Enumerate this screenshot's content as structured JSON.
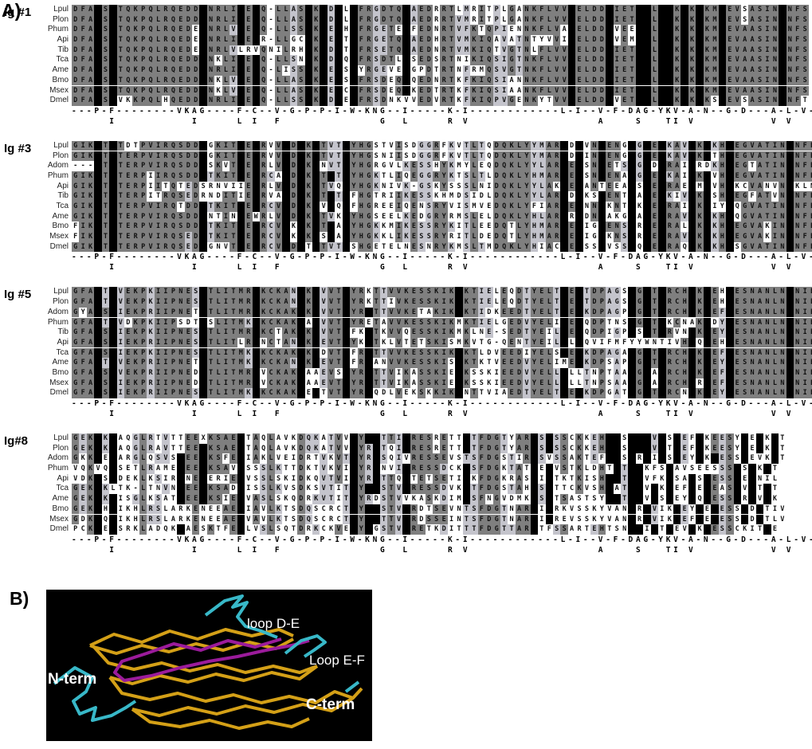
{
  "figure": {
    "panel_a_label": "A)",
    "panel_b_label": "B)"
  },
  "alignment": {
    "colors": {
      "identical_bg": "#000000",
      "conserved_bg": "#7f7f7f",
      "similar_bg": "#c4c4cc",
      "mismatch_bg": "#ffffff"
    },
    "blocks": [
      {
        "title": "Ig #1",
        "rows": [
          {
            "label": "Lpul",
            "seq": "DFA S TQKPQLRQEDD NRLI E Q-LLAS K D L FRGDTQ AEDRRTLMRITPLGANKFLVV ELDD IET  L  K K KM EVSASIN NFS"
          },
          {
            "label": "Plon",
            "seq": "DFA S TQKPQLRQEDD NRLI E Q-LLAS K D L FRGDTQ AEDRRTVMRITPLGANKFLVV ELDD IET  L  K K KM EVSASIN NFS"
          },
          {
            "label": "Phum",
            "seq": "DFA S TQKPQLRQEDE NRLV E Q-LLSS K E H FRGETE FEDNRTVFKTQPIENNKFLVA ELDD VEE  L  K K KM EVAASIN NFS"
          },
          {
            "label": "Api",
            "seq": "DFA S TQKPQLRQEDE NRLI E R-LLGC K E T FRGETQ AEDHRTVMKIQAVATNTYVVI ELDD VEM  L  K K KM EVAASIN NFS"
          },
          {
            "label": "Tib",
            "seq": "DFA S TQKPQLRQEDE NRLVLRVQNILRH K D T FRSETQ AEDNRTVMKIQTVGTNLFLVV ELDD IET  L  K K KM EVAASIN NFS"
          },
          {
            "label": "Tca",
            "seq": "DFA S TQKPQLRQEDD NKLI E Q-LLSN K D Q FRSDTL SEDSRTNIKIQSIGTNKFLVV ELDD IET  L  K K KM EVAASIN NFS"
          },
          {
            "label": "Ame",
            "seq": "DFA S TQKPQLRQEDD NRLI E Q-LISS K E S YRGEVE GPDTRTNFRMQSVGTNKFLVV ELDD IET  L  K K KM EVAASIN NFS"
          },
          {
            "label": "Bmo",
            "seq": "DFA S TQKPQLRQEDD NKLV E Q-LLAS K E S FRSDEQ QEDNRTKFKIQSIANNKFLVV ELDD IET  L  K K KM EVAASIN NFS"
          },
          {
            "label": "Msex",
            "seq": "DFA S TQKPQLRQEDD NKLV E Q-LLAS K E C FRSDEQ KEDTRTKFKIQSIAANKFLVV ELDD IET  L  K K KM EVAASIN NFS"
          },
          {
            "label": "Dmel",
            "seq": "DFA S VKKPQLHQEDD NRLI E Q-LLSS K D E FRSDNKVVEDVRTKFKIQPVGENKYTVV ELDD VET  L  K K KS EVSASIN NFT"
          }
        ],
        "consensus_line1": "---P-F--------VKAG----F-C--V-G-P-P-I-W-KNG--I-----K-I------------L-I--V-F-DAG-YKV-A-N--G-D---A-L-V-",
        "consensus_line2": "     I          I     L I  F             G  L     R V                 A    S   TI V          V V   "
      },
      {
        "title": "Ig #3",
        "rows": [
          {
            "label": "Lpul",
            "seq": "GIK T TDTPVIRQSDD GKIT E RVV D K TVT YHGSTVISDGGRFKVTLTQDQKLYYMAR D VN ENG G E KAV K KH EGVATIN NFE"
          },
          {
            "label": "Plon",
            "seq": "GIK T TERPVIRQSDD GKIT E RVV D K TVT YHGSNIISDGGRFKVTLTQDQKLYYMAR D IN ENG G E KAV K TH EGVATIN NFE"
          },
          {
            "label": "Adom",
            "seq": "--- T TERPVIRQSDD SKVT E RLV D K NVT YHGRGVLKESSHYKMYLEQDQKLYYLAR E SN ETS G D RAI RDKH EGTATIN NFE"
          },
          {
            "label": "Phum",
            "seq": "GIK T TERPIIRQSDD TKIT E RCA D K T T YHGKTLIQEGGRYKTSLTLDQKLYHMAR E SN ENA G E KAI K VH EGVATIN NFE"
          },
          {
            "label": "Api",
            "seq": "GIK T TERPIITQTEDSRNVIIE RLV D K TVQ YHGKNIVK-GSKYSSSLNIDQKLYYLAK E ANTEEA S E RAE M VH KCVANVN KLN"
          },
          {
            "label": "Tib",
            "seq": "GIK T TERPITRQSEDRNDITIE RVA D K T T FHGTRIIKESSKHMDSIDLDQKLYYLAR D KS ENT A E KIV K SH EGFATVN NFE"
          },
          {
            "label": "Tca",
            "seq": "GIK T TERPVIRQTDD TKIT E RCV D K V Q FHGREEIQENSRYVISMVEDQKLYFIAR E NN KNT K E RAI K IY QGVATIN NFE"
          },
          {
            "label": "Ame",
            "seq": "GIK T TERPVIRQSDD NTIN EWRLV D K TVK YHGSEELKEDGRYRMSLELDQKLYHLAR R DN AKG A E RAV K KH QGVATIN NFE"
          },
          {
            "label": "Bmo",
            "seq": "FIK T TERPVIRQSDD TKIT E RCV K K T A YHGKKMIKESSRYKITLEEDQTLYHMAR E IG ENS R E RAL K KH EGVAKIN NFE"
          },
          {
            "label": "Msex",
            "seq": "FIK T TERPVIRQSED TKIT E RCV K K S A YHGKKLIKESSRYRITLDEDQTLYHMAR E IG KNS R E RAV K KH EGVAKIN NFE"
          },
          {
            "label": "Dmel",
            "seq": "GIK T TERPVIRQSED GNVT E RCV D T TVT SHGETELNESNRYKMSLTMDQKLYHIAC E SS VSS Q E RAQ K KH SGVATIN NFE"
          }
        ],
        "consensus_line1": "---P-F--------VKAG----F-C--V-G-P-P-I-W-KNG--I-----K-I------------L-I--V-F-DAG-YKV-A-N--G-D---A-L-V-",
        "consensus_line2": "     I          I     L I  F             G  L     R V                 A    S   TI V          V V   "
      },
      {
        "title": "Ig #5",
        "rows": [
          {
            "label": "Lpul",
            "seq": "GFA T VEKPKIIPNES TLITMR KCKAN K VVT YRKTTVVKESSKIK KTIELEQDTYELT E TDPAGS G T RCH K EH ESNANLN NIE"
          },
          {
            "label": "Plon",
            "seq": "GFA T VEKPKIIPNES TLITMR KCKAN K VVT YRKTTIVKESSKIK KTIELEQDTYELT E TDPAGS G T RCH K EH ESNANLN NIE"
          },
          {
            "label": "Adom",
            "seq": "GYA S IEKPRIIPNET TLITMR KCKAK K VVT YR TTVVKETAKIK KTIDKEEDTYELT E KDPAGP G T RCH K EF ESNANLN NIE"
          },
          {
            "label": "Phum",
            "seq": "GFA T VDKPKIIPSDT SLITMK KCKAK A VVT YRETAVVKESSKIKMKTIELGEDVYELI E QDPTNS G T KCNAK DY ESNANLN NIE"
          },
          {
            "label": "Tib",
            "seq": "GFA S IEKPKIIPNES TLITMR KCTAK K VVT FK TKVVQESSKIKMKLNE-SEDTYEIL E QDPIGP S T RVN K EY ESNANLN NIE"
          },
          {
            "label": "Api",
            "seq": "GFA S IEKPRIIPNES TLITLR NCTAN K EVT YK TKLVTETSKISMKVTG-QENTYEIL L QVIFMFYYWNTIVH Q EH ESNANLN NIE"
          },
          {
            "label": "Tca",
            "seq": "GFA S IEKPKIIPNES TLITMK KCKAK K DVT FR TTVVKESSKIK KTLDVEEDIYELS E KDPAGA G T RCH K EF ESNANLN NIE"
          },
          {
            "label": "Ame",
            "seq": "GFA T VEKPRIIPNET TLITMK KCKAN K EVT FR ANVVKESSKIS KTKTVEEDVYELIME KDPSAP G T RCH K EY ESNANLN NIE"
          },
          {
            "label": "Bmo",
            "seq": "GFA S VEKPRIIPNED TLITMR VCKAK AAEVS YR TTVIKASSKIE KSSKIEEDVYELL LLTNPTAA G A RCH K EF ESNANLN NIE"
          },
          {
            "label": "Msex",
            "seq": "GFA S IEKPRIIPNED TLITMR VCKAK AAEVT YR TTVIKASSKIE KSSKIEEDVYELL LLTNPSAA G A RCH R EF ESNANLN NIE"
          },
          {
            "label": "Dmel",
            "seq": "GFA S IEKPRIIPNES TLITMK KCKAK E TVT YR QDLVEKSKKIK NTTVIAEDTYELT E KDPGAT G T RCN K EY ESNANLN NIE"
          }
        ],
        "consensus_line1": "---P-F--------VKAG----F-C--V-G-P-P-I-W-KNG--I-----K-I------------L-I--V-F-DAG-YKV-A-N--G-D---A-L-V-",
        "consensus_line2": "     I          I     L I  F             G  L     R V                 A    S   TI V          V V   "
      },
      {
        "title": "Ig#8",
        "rows": [
          {
            "label": "Lpul",
            "seq": "GEK K AQGLRTVTTEEXKSAE TAQLAVKDQKATVV Y  TTI RESRETT TFDGTYAR S SSCKKEH  S   V S EF KEESY E K T"
          },
          {
            "label": "Plon",
            "seq": "GEK K AQGLRAVTTEE KSAE TAQLAVKDQKATVV YR TQI RESRETT TFDGTYAR S SSCKKEH  S   V T EF KEESY E K T"
          },
          {
            "label": "Adom",
            "seq": "GKK E ARGLQSVS EE KSFE IAKLVEIDRTVKVT YR SQIVRESSEVSTSFDGSTIR SVSSAKTEF  S R I S EY K ESS EVK T"
          },
          {
            "label": "Phum",
            "seq": "VQKVQ SETLRAME EE KSAV SSSLKTTDKTVKVI YR NVI RESSDCK SFDGKTAT E VSTKLDHT T  KFS AVSEESSS S K T"
          },
          {
            "label": "Api",
            "seq": "VDK S DEKLKSIR NE ERIE VSSLSKIDKQVTVI YR TTQ TETSETI KFDGKRAS I TKTKISH  T  VFK SA S ESS E NIL"
          },
          {
            "label": "Tca",
            "seq": "GEK KLTK-LTNVN EE KSAD ISSLKVSDKSVTIT Y  STV RESSDVK TFDGSTAH S TTCKVSH AT  V K EF E EAS V T T"
          },
          {
            "label": "Ame",
            "seq": "GEK K ISGLKSAT EE KSIE VASLSKQDRKVTIT YRDSTVVKASKDIM SFNGVDMK S TSASTSY  T  V S EY Q ESS R V K"
          },
          {
            "label": "Bmo",
            "seq": "GEK H IKHLRSLARKENEEAE IAVLKTSDQSCRCT Y  STV RDTSEVNTSFDGTNAR I RKVSSKYVAN R VIK EY E ESS D TIV"
          },
          {
            "label": "Msex",
            "seq": "GDK Q IKHLRSLARKENEEAE VAVLKTSDQSCRCT Y  TTV RDSSEINTSFDGTNAR I REVSSKYVAN R VIK EF E ESS D TLV"
          },
          {
            "label": "Dmel",
            "seq": "PCK E SRKLADQK AESKTFE LVSLSQTDRKCKVE Y GSTV RETKDITTTFDGTTAR TFSSARTEHTSN  I T EV K ESSCKIT E"
          }
        ],
        "consensus_line1": "---P-F--------VKAG----F-C--V-G-P-P-I-W-KNG--I-----K-I------------L-I--V-F-DAG-YKV-A-N--G-D---A-L-V-",
        "consensus_line2": "     I          I     L I  F             G  L     R V                 A    S   TI V          V V   "
      }
    ]
  },
  "panel_b": {
    "labels": {
      "loop_de": "loop D-E",
      "loop_ef": "Loop E-F",
      "n_term": "N-term",
      "c_term": "C-term"
    },
    "colors": {
      "background": "#000000",
      "backbone": "#d4a017",
      "loops": "#38b8c8",
      "inner_strand": "#9b1b9b"
    }
  }
}
